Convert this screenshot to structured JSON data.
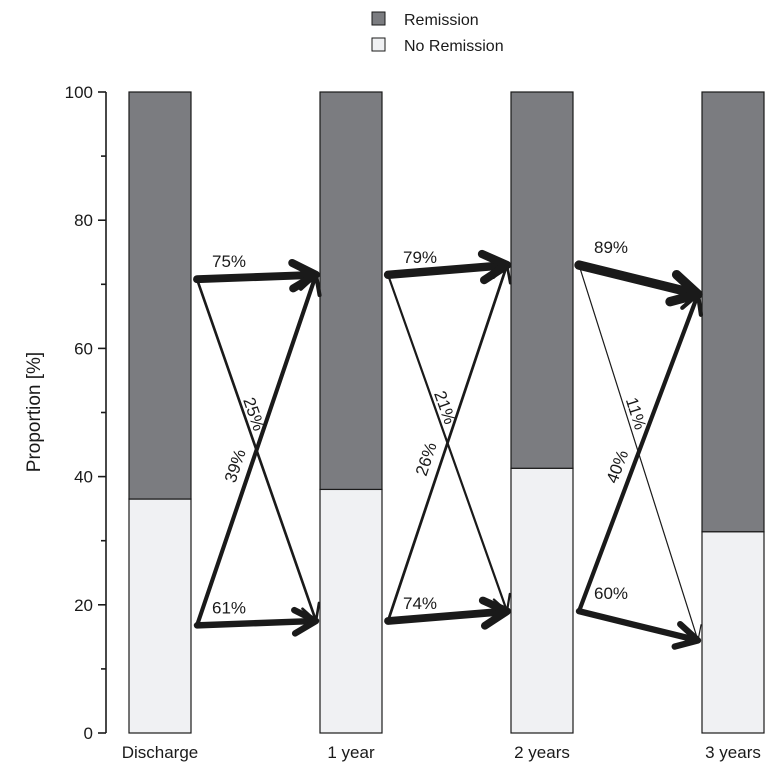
{
  "chart_data": {
    "type": "bar",
    "stacked": true,
    "ylabel": "Proportion [%]",
    "xlabel": "",
    "ylim": [
      0,
      100
    ],
    "yticks": [
      "0",
      "20",
      "40",
      "60",
      "80",
      "100"
    ],
    "categories": [
      "Discharge",
      "1 year",
      "2 years",
      "3 years"
    ],
    "legend_position": "top-center",
    "series": [
      {
        "name": "No Remission",
        "color": "#f0f1f3",
        "values": [
          36.5,
          38,
          41.3,
          31.4
        ]
      },
      {
        "name": "Remission",
        "color": "#7b7c80",
        "values": [
          63.5,
          62,
          58.7,
          68.6
        ]
      }
    ],
    "transitions": [
      {
        "from_index": 0,
        "from_state": "Remission",
        "to_state": "Remission",
        "label": "75%",
        "value": 75
      },
      {
        "from_index": 0,
        "from_state": "Remission",
        "to_state": "No Remission",
        "label": "25%",
        "value": 25
      },
      {
        "from_index": 0,
        "from_state": "No Remission",
        "to_state": "Remission",
        "label": "39%",
        "value": 39
      },
      {
        "from_index": 0,
        "from_state": "No Remission",
        "to_state": "No Remission",
        "label": "61%",
        "value": 61
      },
      {
        "from_index": 1,
        "from_state": "Remission",
        "to_state": "Remission",
        "label": "79%",
        "value": 79
      },
      {
        "from_index": 1,
        "from_state": "Remission",
        "to_state": "No Remission",
        "label": "21%",
        "value": 21
      },
      {
        "from_index": 1,
        "from_state": "No Remission",
        "to_state": "Remission",
        "label": "26%",
        "value": 26
      },
      {
        "from_index": 1,
        "from_state": "No Remission",
        "to_state": "No Remission",
        "label": "74%",
        "value": 74
      },
      {
        "from_index": 2,
        "from_state": "Remission",
        "to_state": "Remission",
        "label": "89%",
        "value": 89
      },
      {
        "from_index": 2,
        "from_state": "Remission",
        "to_state": "No Remission",
        "label": "11%",
        "value": 11
      },
      {
        "from_index": 2,
        "from_state": "No Remission",
        "to_state": "Remission",
        "label": "40%",
        "value": 40
      },
      {
        "from_index": 2,
        "from_state": "No Remission",
        "to_state": "No Remission",
        "label": "60%",
        "value": 60
      }
    ]
  }
}
